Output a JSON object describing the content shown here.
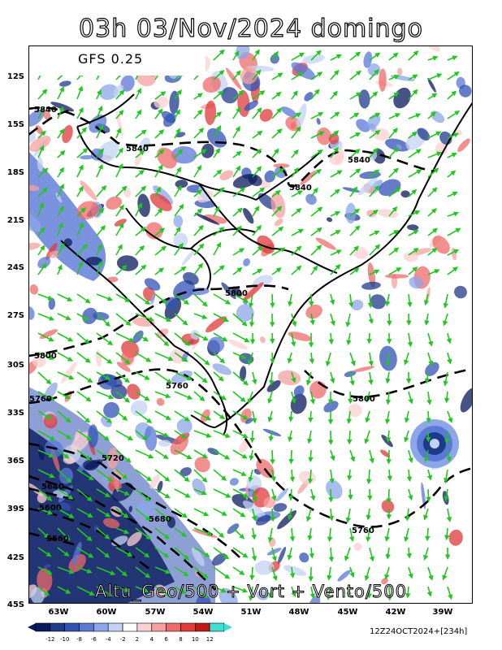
{
  "title": "03h 03/Nov/2024 domingo",
  "model": "GFS 0.25",
  "bottom_label": "Altu_Geo/500 + Vort + Vento/500",
  "run_info": "12Z24OCT2024+[234h]",
  "lat_labels": [
    "12S",
    "15S",
    "18S",
    "21S",
    "24S",
    "27S",
    "30S",
    "33S",
    "36S",
    "39S",
    "42S",
    "45S"
  ],
  "lon_labels": [
    "63W",
    "60W",
    "57W",
    "54W",
    "51W",
    "48W",
    "45W",
    "42W",
    "39W"
  ],
  "contour_labels": [
    "5840",
    "5840",
    "5840",
    "5840",
    "5800",
    "5800",
    "5760",
    "5800",
    "5760",
    "5720",
    "5640",
    "5600",
    "5680",
    "5560",
    "5760"
  ],
  "colorbar": {
    "ticks": [
      "-12",
      "-10",
      "-8",
      "-6",
      "-4",
      "-2",
      "2",
      "4",
      "6",
      "8",
      "10",
      "12"
    ],
    "colors": [
      "#0a1a5c",
      "#1e3a8a",
      "#3151b5",
      "#5a78d6",
      "#8ca6e8",
      "#c3d2f3",
      "#ffffff",
      "#fbd0d0",
      "#f5a0a0",
      "#ee6a6a",
      "#e03a3a",
      "#c01818",
      "#40e0d0"
    ]
  },
  "colors": {
    "wind_arrow": "#1ec81e",
    "contour": "#000000",
    "border": "#000000"
  }
}
